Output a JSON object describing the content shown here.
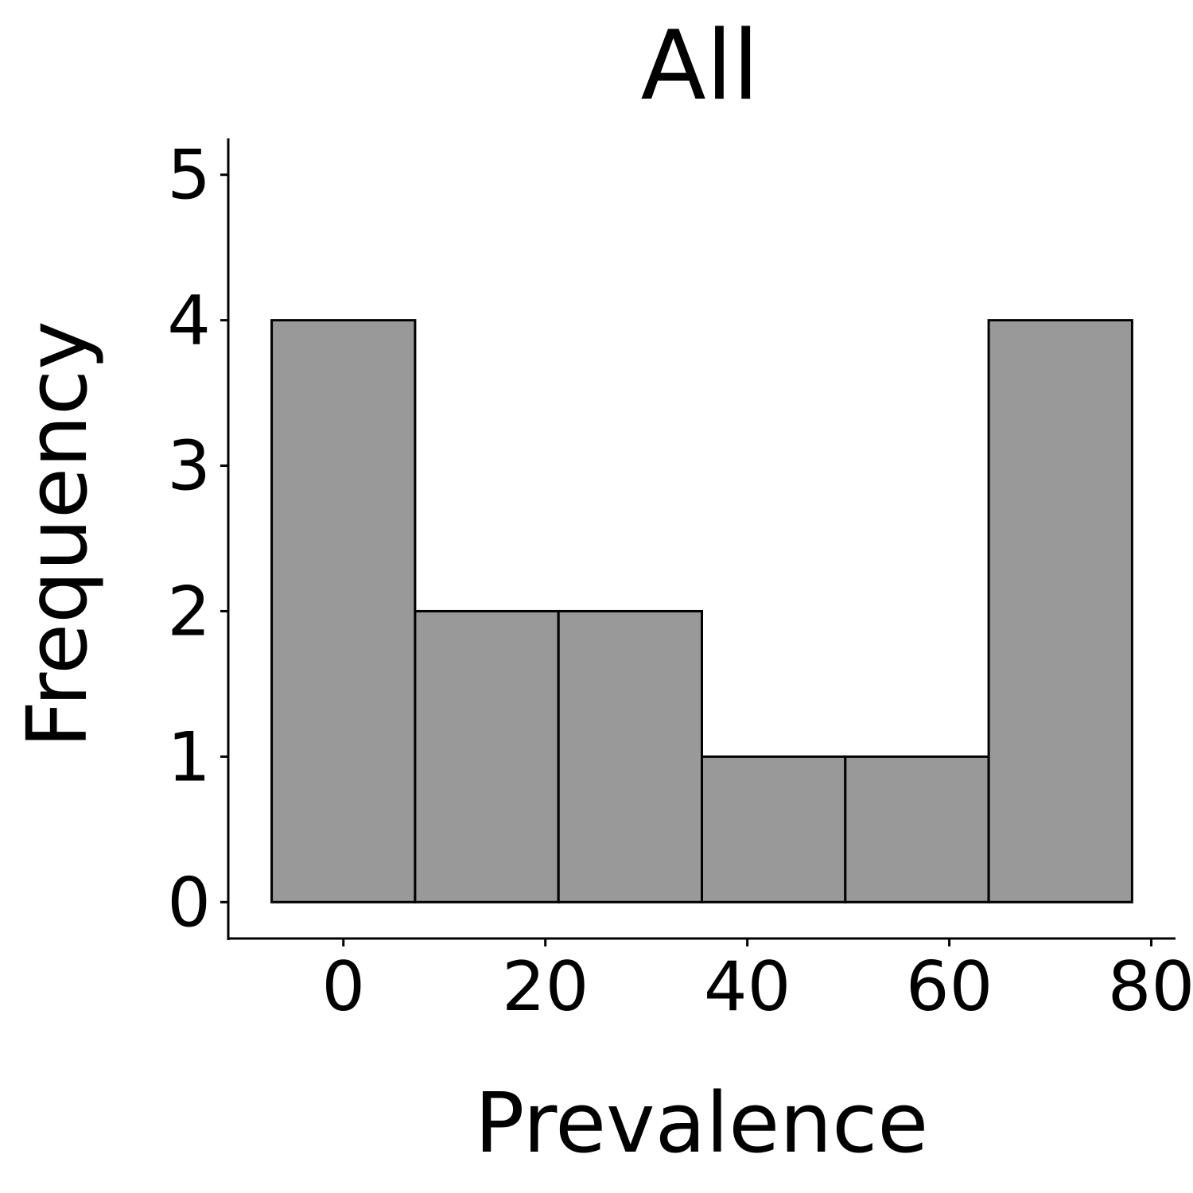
{
  "chart_data": {
    "type": "bar",
    "title": "All",
    "xlabel": "Prevalence",
    "ylabel": "Frequency",
    "bins": [
      {
        "x0": -7.1,
        "x1": 7.1,
        "count": 4
      },
      {
        "x0": 7.1,
        "x1": 21.3,
        "count": 2
      },
      {
        "x0": 21.3,
        "x1": 35.5,
        "count": 2
      },
      {
        "x0": 35.5,
        "x1": 49.7,
        "count": 1
      },
      {
        "x0": 49.7,
        "x1": 63.9,
        "count": 1
      },
      {
        "x0": 63.9,
        "x1": 78.1,
        "count": 4
      }
    ],
    "xticks": [
      0,
      20,
      40,
      60,
      80
    ],
    "yticks": [
      0,
      1,
      2,
      3,
      4,
      5
    ],
    "xlim": [
      -11.4,
      82.4
    ],
    "ylim": [
      -0.25,
      5.25
    ],
    "grid": false,
    "colors": {
      "bar_fill": "#999999",
      "bar_stroke": "#000000"
    }
  }
}
